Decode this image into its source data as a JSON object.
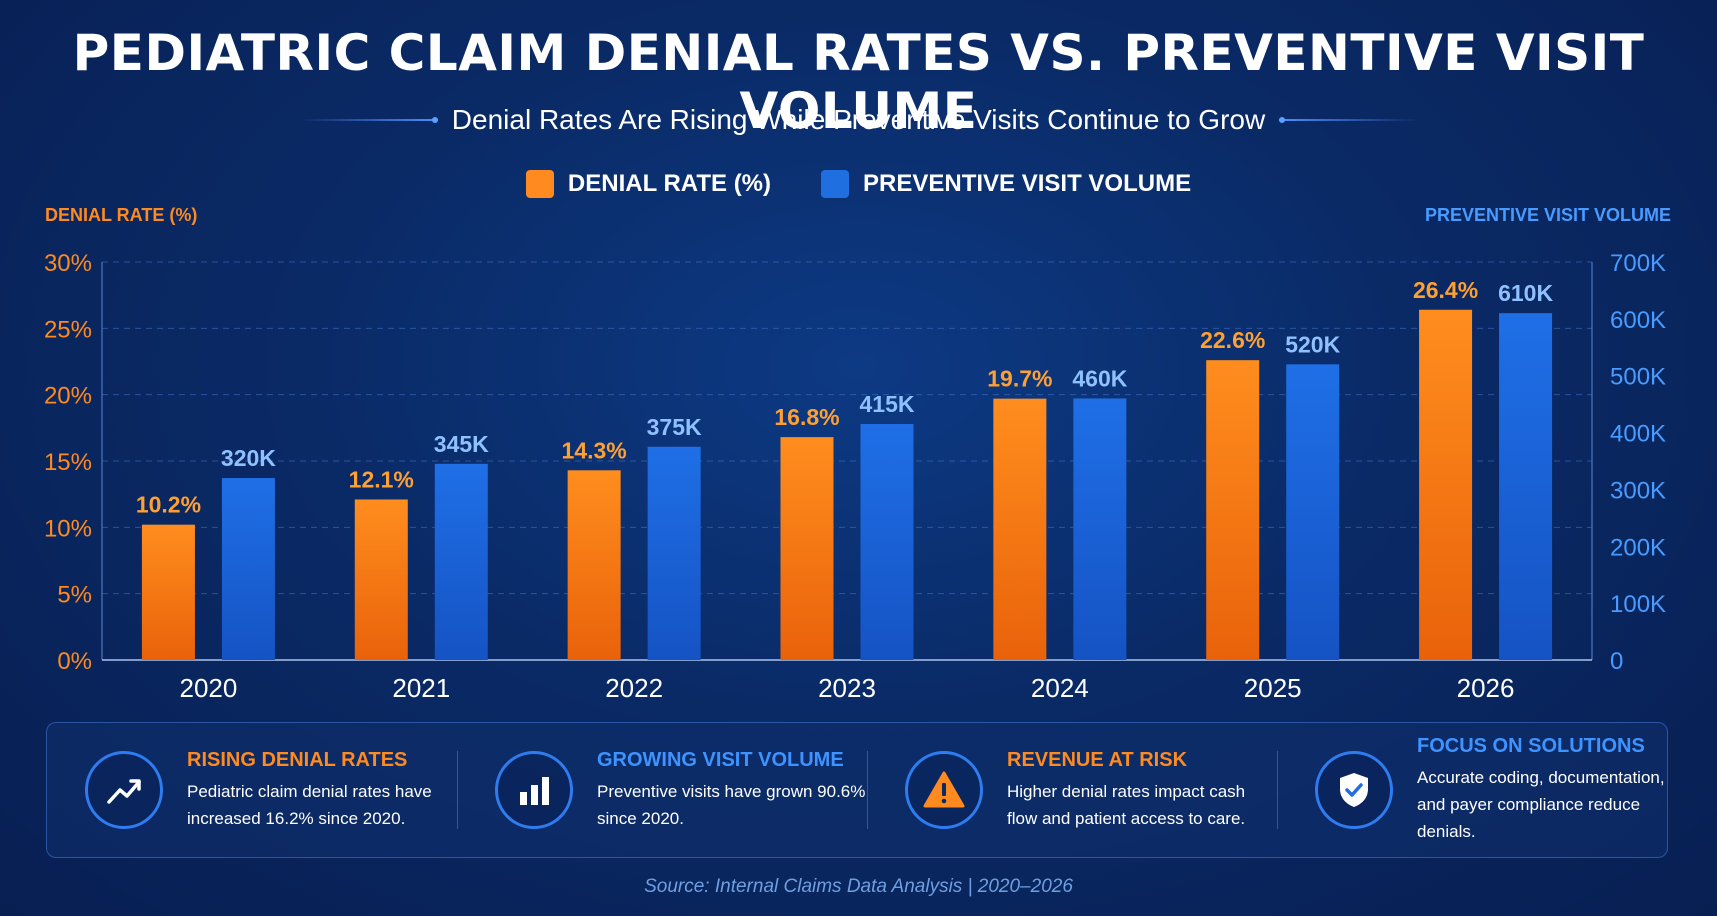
{
  "title": "PEDIATRIC CLAIM DENIAL RATES VS. PREVENTIVE VISIT VOLUME",
  "subtitle": "Denial Rates Are Rising While Preventive Visits Continue to Grow",
  "legend": [
    {
      "label": "DENIAL RATE (%)",
      "color": "#ff8a1f"
    },
    {
      "label": "PREVENTIVE VISIT VOLUME",
      "color": "#1f6fe0"
    }
  ],
  "chart_data": {
    "type": "bar",
    "title": "PEDIATRIC CLAIM DENIAL RATES VS. PREVENTIVE VISIT VOLUME",
    "subtitle": "Denial Rates Are Rising While Preventive Visits Continue to Grow",
    "categories": [
      "2020",
      "2021",
      "2022",
      "2023",
      "2024",
      "2025",
      "2026"
    ],
    "series": [
      {
        "name": "DENIAL RATE (%)",
        "axis": "left",
        "values": [
          10.2,
          12.1,
          14.3,
          16.8,
          19.7,
          22.6,
          26.4
        ],
        "labels": [
          "10.2%",
          "12.1%",
          "14.3%",
          "16.8%",
          "19.7%",
          "22.6%",
          "26.4%"
        ],
        "color": "#ff8a1f"
      },
      {
        "name": "PREVENTIVE VISIT VOLUME",
        "axis": "right",
        "values": [
          320000,
          345000,
          375000,
          415000,
          460000,
          520000,
          610000
        ],
        "labels": [
          "320K",
          "345K",
          "375K",
          "415K",
          "460K",
          "520K",
          "610K"
        ],
        "color": "#1f6fe0"
      }
    ],
    "ylabel": "DENIAL RATE (%)",
    "ylabel_right": "PREVENTIVE VISIT VOLUME",
    "ylim": [
      0,
      30
    ],
    "ylim_right": [
      0,
      700000
    ],
    "yticks": [
      "0%",
      "5%",
      "10%",
      "15%",
      "20%",
      "25%",
      "30%"
    ],
    "yticks_right": [
      "0",
      "100K",
      "200K",
      "300K",
      "400K",
      "500K",
      "600K",
      "700K"
    ],
    "grid": true,
    "legend_position": "top-center"
  },
  "insights": [
    {
      "icon": "trend-up-icon",
      "title": "RISING DENIAL RATES",
      "color": "#ff8a1f",
      "text": "Pediatric claim denial rates have increased 16.2% since 2020."
    },
    {
      "icon": "bar-chart-icon",
      "title": "GROWING VISIT VOLUME",
      "color": "#3f93ff",
      "text": "Preventive visits have grown 90.6% since 2020."
    },
    {
      "icon": "warning-icon",
      "title": "REVENUE AT RISK",
      "color": "#ff8a1f",
      "text": "Higher denial rates impact cash flow and patient access to care."
    },
    {
      "icon": "shield-check-icon",
      "title": "FOCUS ON SOLUTIONS",
      "color": "#3f93ff",
      "text": "Accurate coding, documentation, and payer compliance reduce denials."
    }
  ],
  "source": "Source: Internal Claims Data Analysis  |  2020–2026"
}
